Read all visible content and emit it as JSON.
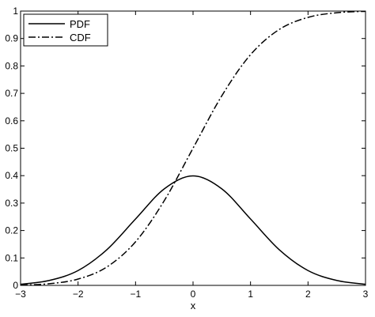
{
  "chart_data": {
    "type": "line",
    "title": "",
    "xlabel": "x",
    "ylabel": "",
    "xlim": [
      -3,
      3
    ],
    "ylim": [
      0,
      1
    ],
    "xticks": [
      -3,
      -2,
      -1,
      0,
      1,
      2,
      3
    ],
    "xtick_labels": [
      "−3",
      "−2",
      "−1",
      "0",
      "1",
      "2",
      "3"
    ],
    "yticks": [
      0,
      0.1,
      0.2,
      0.3,
      0.4,
      0.5,
      0.6,
      0.7,
      0.8,
      0.9,
      1
    ],
    "ytick_labels": [
      "0",
      "0.1",
      "0.2",
      "0.3",
      "0.4",
      "0.5",
      "0.6",
      "0.7",
      "0.8",
      "0.9",
      "1"
    ],
    "grid": false,
    "legend_position": "top-left",
    "x": [
      -3,
      -2.5,
      -2,
      -1.5,
      -1,
      -0.5,
      0,
      0.5,
      1,
      1.5,
      2,
      2.5,
      3
    ],
    "series": [
      {
        "name": "PDF",
        "style": "solid",
        "color": "#000000",
        "values": [
          0.004,
          0.018,
          0.054,
          0.13,
          0.242,
          0.352,
          0.399,
          0.352,
          0.242,
          0.13,
          0.054,
          0.018,
          0.004
        ]
      },
      {
        "name": "CDF",
        "style": "dashdot",
        "color": "#000000",
        "values": [
          0.001,
          0.006,
          0.023,
          0.067,
          0.159,
          0.309,
          0.5,
          0.691,
          0.841,
          0.933,
          0.977,
          0.994,
          0.999
        ]
      }
    ]
  }
}
